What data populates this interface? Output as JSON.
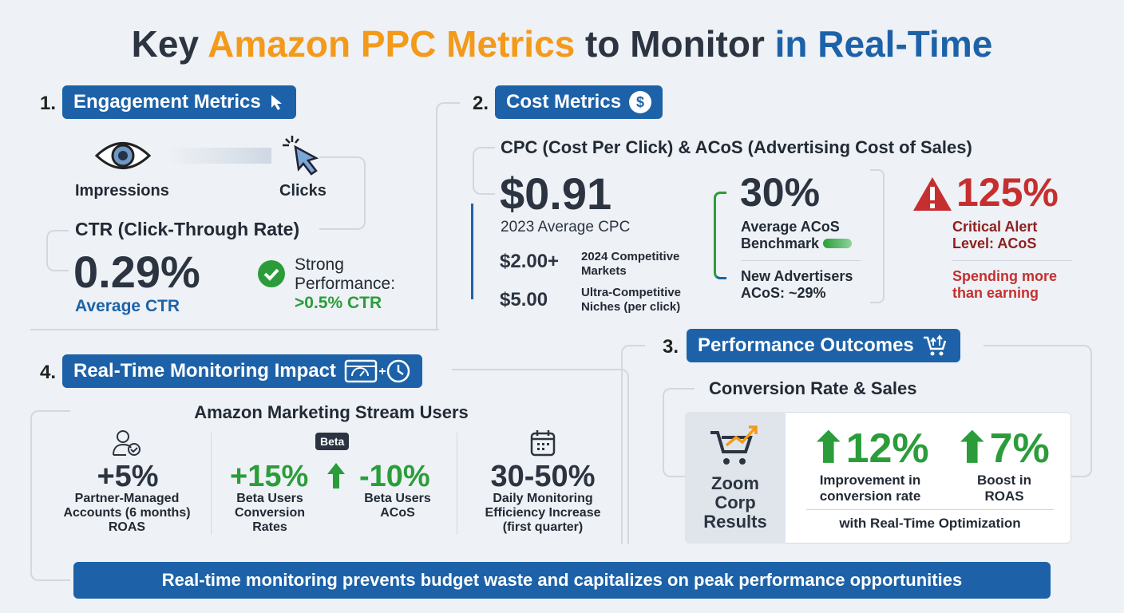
{
  "title": {
    "part1": "Key ",
    "part2": "Amazon PPC Metrics",
    "part3": " to Monitor ",
    "part4": "in Real-Time"
  },
  "colors": {
    "navy": "#2b3440",
    "orange": "#f39a1a",
    "blue": "#1d62a8",
    "green": "#2a9d3a",
    "red": "#c62f2f"
  },
  "engagement": {
    "num": "1.",
    "label": "Engagement Metrics",
    "impressions": "Impressions",
    "clicks": "Clicks",
    "ctr_title": "CTR (Click-Through Rate)",
    "ctr_value": "0.29%",
    "ctr_caption": "Average CTR",
    "strong_label": "Strong Performance:",
    "strong_value": ">0.5% CTR"
  },
  "cost": {
    "num": "2.",
    "label": "Cost Metrics",
    "subtitle": "CPC (Cost Per Click) & ACoS (Advertising Cost of Sales)",
    "cpc_value": "$0.91",
    "cpc_caption": "2023 Average CPC",
    "tier1_value": "$2.00+",
    "tier1_caption": "2024 Competitive Markets",
    "tier2_value": "$5.00",
    "tier2_caption": "Ultra-Competitive Niches (per click)",
    "acos_value": "30%",
    "acos_caption": "Average ACoS Benchmark",
    "new_adv": "New Advertisers ACoS: ~29%",
    "alert_value": "125%",
    "alert_caption": "Critical Alert Level: ACoS",
    "alert_note": "Spending more than earning"
  },
  "outcomes": {
    "num": "3.",
    "label": "Performance Outcomes",
    "subtitle": "Conversion Rate & Sales",
    "brand": "Zoom Corp Results",
    "conv_value": "12%",
    "conv_caption": "Improvement in conversion rate",
    "roas_value": "7%",
    "roas_caption": "Boost in ROAS",
    "footer": "with Real-Time Optimization"
  },
  "monitoring": {
    "num": "4.",
    "label": "Real-Time Monitoring Impact",
    "subtitle": "Amazon Marketing Stream Users",
    "beta_badge": "Beta",
    "stats": [
      {
        "value": "+5%",
        "caption": "Partner-Managed Accounts (6 months) ROAS"
      },
      {
        "value": "+15%",
        "caption": "Beta Users Conversion Rates"
      },
      {
        "value": "-10%",
        "caption": "Beta Users ACoS"
      },
      {
        "value": "30-50%",
        "caption": "Daily Monitoring Efficiency Increase (first quarter)"
      }
    ]
  },
  "banner": "Real-time monitoring prevents budget waste and capitalizes on peak performance opportunities"
}
